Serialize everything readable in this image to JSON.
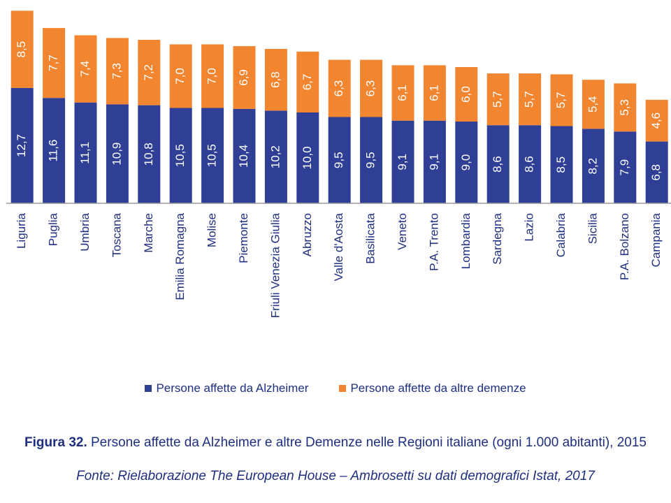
{
  "colors": {
    "alzheimer": "#2e3f95",
    "altre": "#f2852f",
    "axis": "#9a9a9a",
    "text": "#1f2f80"
  },
  "legend": {
    "alzheimer": "Persone affette da Alzheimer",
    "altre": "Persone affette da altre demenze"
  },
  "caption": {
    "figure_number": "Figura 32.",
    "text": " Persone affette da Alzheimer e altre Demenze nelle Regioni italiane (ogni 1.000 abitanti), 2015",
    "source": "Fonte: Rielaborazione The European House – Ambrosetti su dati demografici Istat, 2017"
  },
  "chart_data": {
    "type": "bar",
    "stacked": true,
    "categories": [
      "Liguria",
      "Puglia",
      "Umbria",
      "Toscana",
      "Marche",
      "Emilia Romagna",
      "Molise",
      "Piemonte",
      "Friuli Venezia Giulia",
      "Abruzzo",
      "Valle d'Aosta",
      "Basilicata",
      "Veneto",
      "P.A. Trento",
      "Lombardia",
      "Sardegna",
      "Lazio",
      "Calabria",
      "Sicilia",
      "P.A. Bolzano",
      "Campania"
    ],
    "series": [
      {
        "name": "Persone affette da Alzheimer",
        "values": [
          12.7,
          11.6,
          11.1,
          10.9,
          10.8,
          10.5,
          10.5,
          10.4,
          10.2,
          10.0,
          9.5,
          9.5,
          9.1,
          9.1,
          9.0,
          8.6,
          8.6,
          8.5,
          8.2,
          7.9,
          6.8
        ],
        "labels": [
          "12,7",
          "11,6",
          "11,1",
          "10,9",
          "10,8",
          "10,5",
          "10,5",
          "10,4",
          "10,2",
          "10,0",
          "9,5",
          "9,5",
          "9,1",
          "9,1",
          "9,0",
          "8,6",
          "8,6",
          "8,5",
          "8,2",
          "7,9",
          "6,8"
        ]
      },
      {
        "name": "Persone affette da altre demenze",
        "values": [
          8.5,
          7.7,
          7.4,
          7.3,
          7.2,
          7.0,
          7.0,
          6.9,
          6.8,
          6.7,
          6.3,
          6.3,
          6.1,
          6.1,
          6.0,
          5.7,
          5.7,
          5.7,
          5.4,
          5.3,
          4.6
        ],
        "labels": [
          "8,5",
          "7,7",
          "7,4",
          "7,3",
          "7,2",
          "7,0",
          "7,0",
          "6,9",
          "6,8",
          "6,7",
          "6,3",
          "6,3",
          "6,1",
          "6,1",
          "6,0",
          "5,7",
          "5,7",
          "5,7",
          "5,4",
          "5,3",
          "4,6"
        ]
      }
    ],
    "legend_position": "bottom",
    "grid": false
  }
}
